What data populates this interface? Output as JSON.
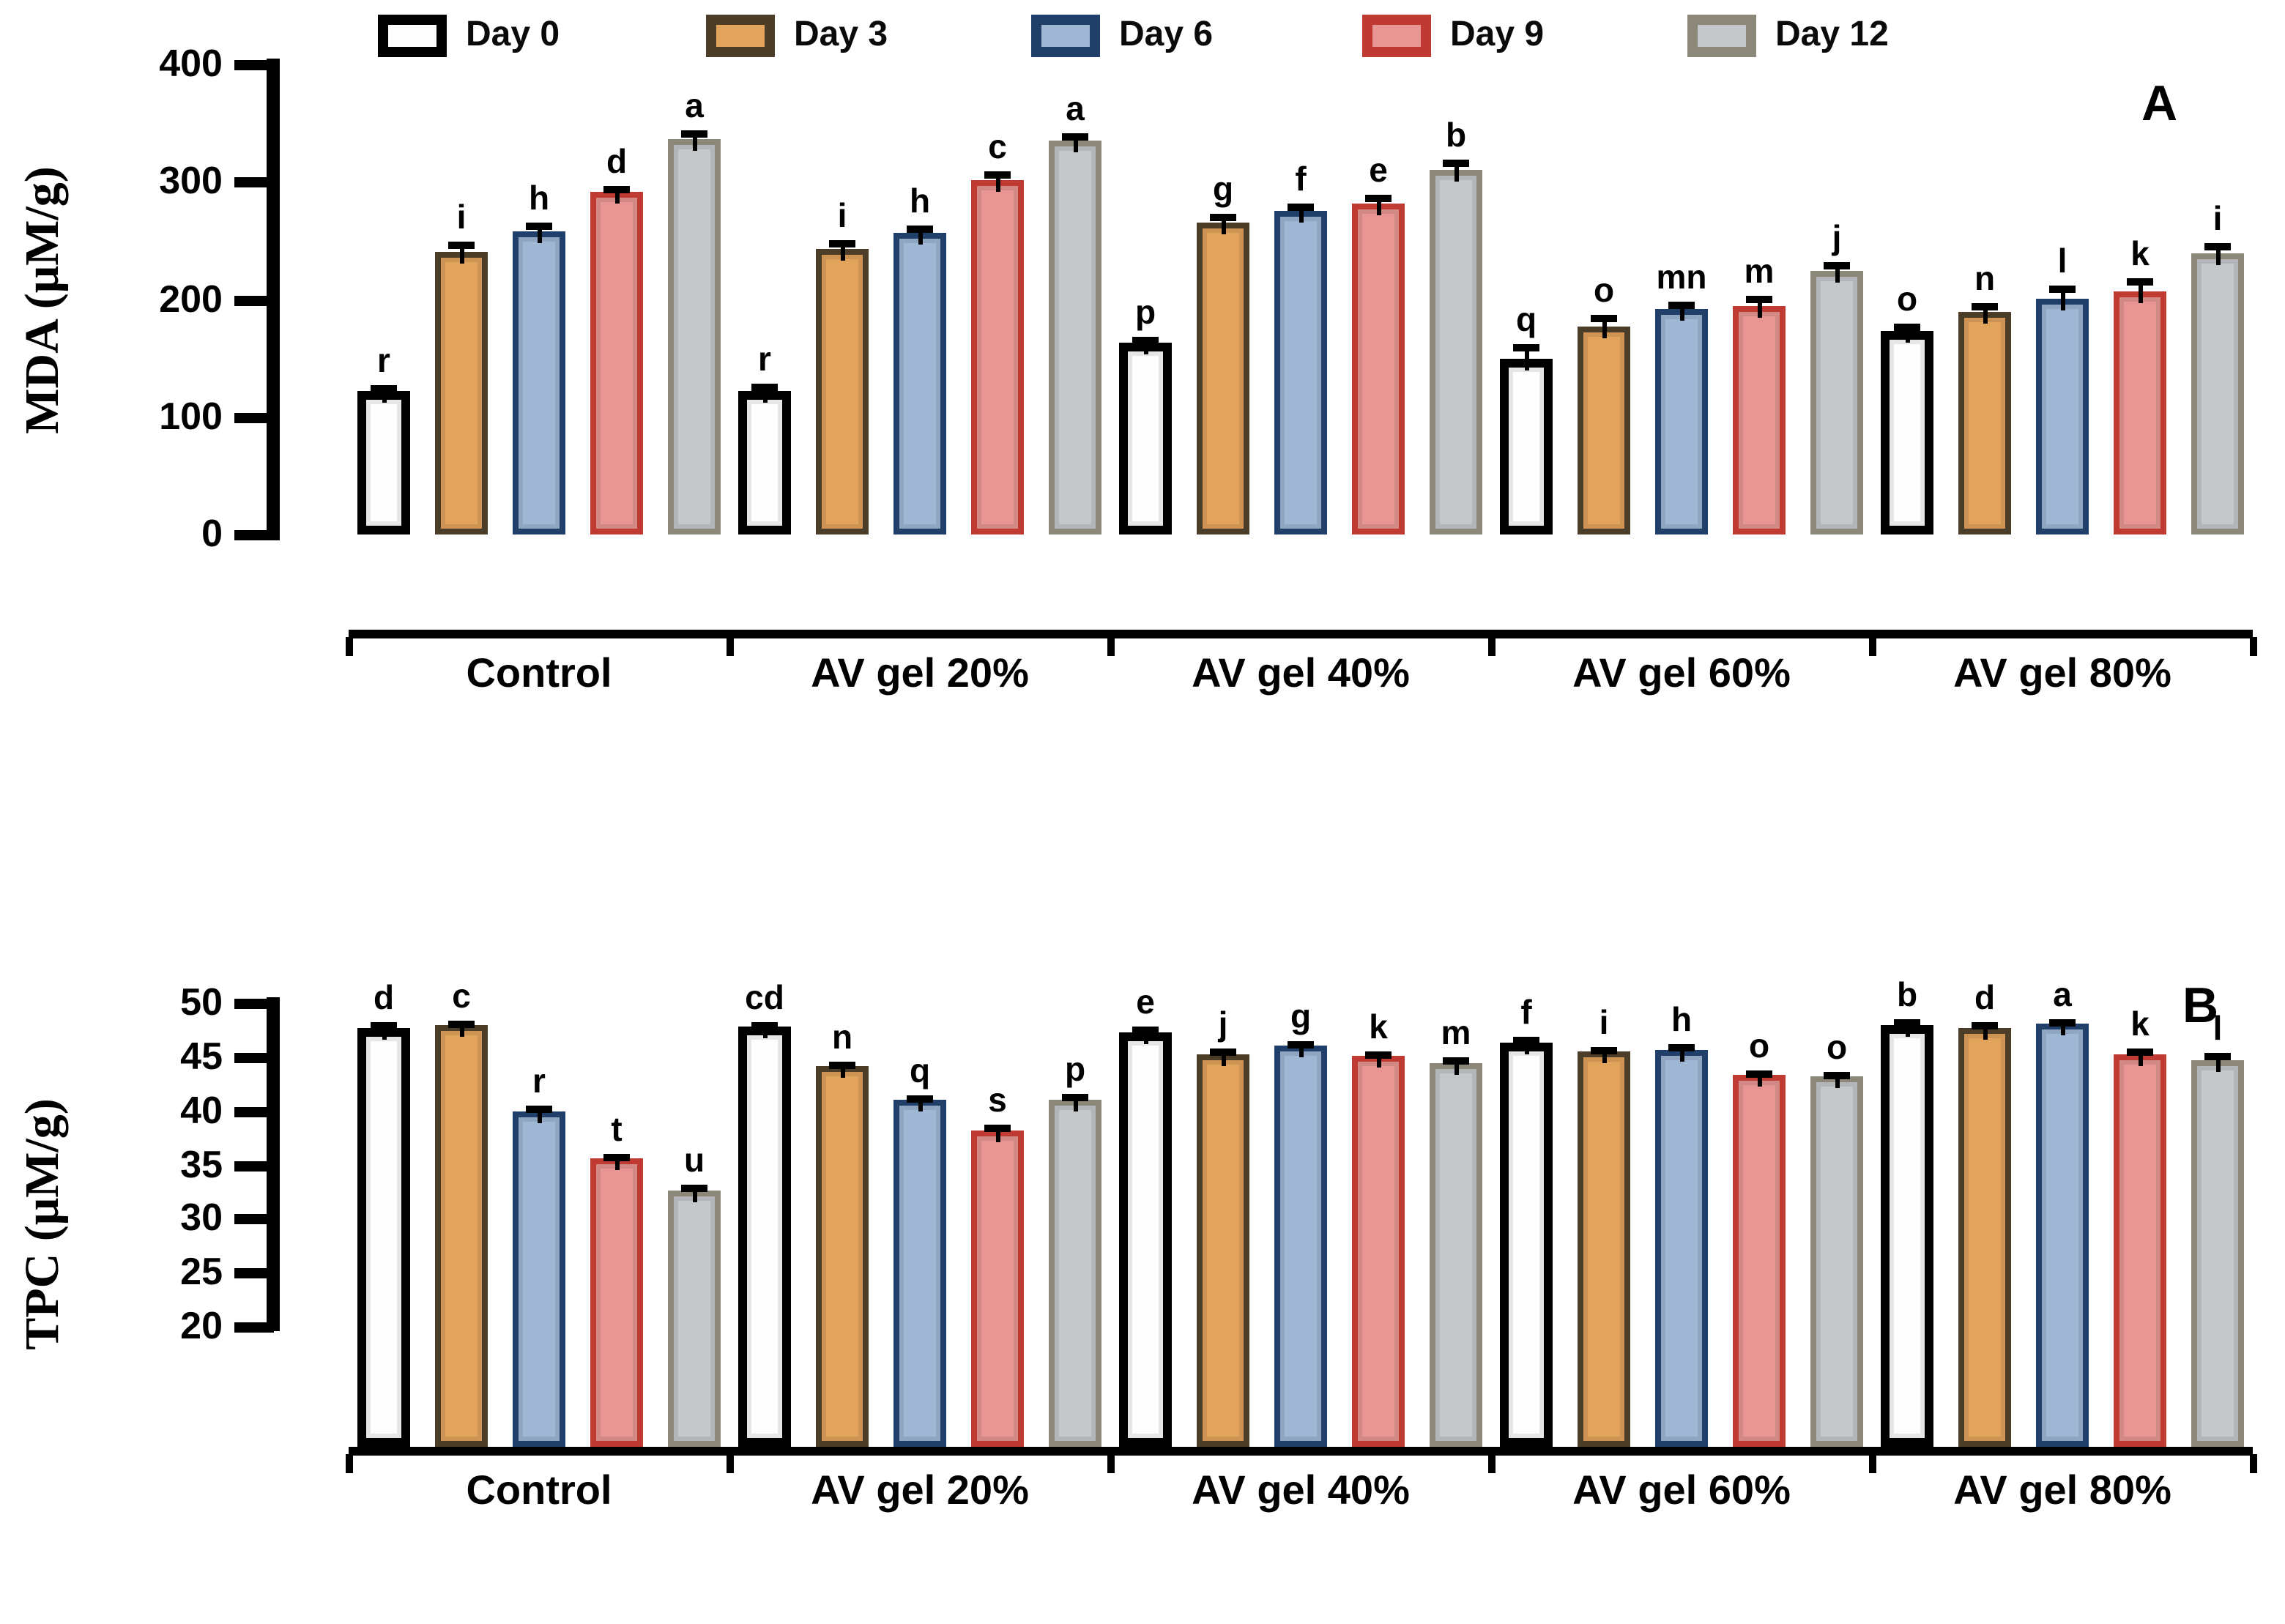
{
  "figure": {
    "panel_a_label": "A",
    "panel_b_label": "B"
  },
  "chart_data": [
    {
      "type": "bar",
      "panel_label": "A",
      "title": "",
      "xlabel": "",
      "ylabel": "MDA (μM/g)",
      "ylim": [
        0,
        400
      ],
      "yticks": [
        0,
        100,
        200,
        300,
        400
      ],
      "grid": false,
      "legend_position": "top",
      "categories": [
        "Control",
        "AV gel 20%",
        "AV gel 40%",
        "AV gel 60%",
        "AV gel 80%"
      ],
      "series": [
        {
          "name": "Day 0",
          "fill": "#FDFDFD",
          "border": "#000000",
          "values": [
            122,
            122,
            163,
            150,
            173
          ],
          "errors": [
            3,
            4,
            3,
            9,
            4
          ],
          "letters": [
            "r",
            "r",
            "p",
            "q",
            "o"
          ]
        },
        {
          "name": "Day 3",
          "fill": "#E2A35C",
          "border": "#4C3D28",
          "values": [
            241,
            243,
            266,
            177,
            189
          ],
          "errors": [
            6,
            5,
            4,
            7,
            5
          ],
          "letters": [
            "i",
            "i",
            "g",
            "o",
            "n"
          ]
        },
        {
          "name": "Day 6",
          "fill": "#9FB6D4",
          "border": "#20406A",
          "values": [
            258,
            257,
            275,
            192,
            201
          ],
          "errors": [
            5,
            4,
            4,
            4,
            8
          ],
          "letters": [
            "h",
            "h",
            "f",
            "mn",
            "l"
          ]
        },
        {
          "name": "Day 9",
          "fill": "#E79693",
          "border": "#BE3A32",
          "values": [
            291,
            302,
            282,
            195,
            207
          ],
          "errors": [
            3,
            4,
            5,
            6,
            8
          ],
          "letters": [
            "d",
            "c",
            "e",
            "m",
            "k"
          ]
        },
        {
          "name": "Day 12",
          "fill": "#C4C8CB",
          "border": "#8B887A",
          "values": [
            336,
            335,
            310,
            224,
            239
          ],
          "errors": [
            6,
            4,
            6,
            5,
            6
          ],
          "letters": [
            "a",
            "a",
            "b",
            "j",
            "i"
          ]
        }
      ]
    },
    {
      "type": "bar",
      "panel_label": "B",
      "title": "",
      "xlabel": "",
      "ylabel": "TPC (μM/g)",
      "ylim": [
        20,
        50
      ],
      "yticks": [
        20,
        25,
        30,
        35,
        40,
        45,
        50
      ],
      "grid": false,
      "legend_position": "none",
      "categories": [
        "Control",
        "AV gel 20%",
        "AV gel 40%",
        "AV gel 60%",
        "AV gel 80%"
      ],
      "series": [
        {
          "name": "Day 0",
          "fill": "#FDFDFD",
          "border": "#000000",
          "values": [
            47.7,
            47.8,
            47.3,
            46.4,
            48.0
          ],
          "errors": [
            0.2,
            0.2,
            0.2,
            0.2,
            0.2
          ],
          "letters": [
            "d",
            "cd",
            "e",
            "f",
            "b"
          ]
        },
        {
          "name": "Day 3",
          "fill": "#E2A35C",
          "border": "#4C3D28",
          "values": [
            47.9,
            44.1,
            45.3,
            45.5,
            47.7
          ],
          "errors": [
            0.2,
            0.2,
            0.2,
            0.2,
            0.2
          ],
          "letters": [
            "c",
            "n",
            "j",
            "i",
            "d"
          ]
        },
        {
          "name": "Day 6",
          "fill": "#9FB6D4",
          "border": "#20406A",
          "values": [
            40.0,
            41.0,
            46.0,
            45.7,
            48.1
          ],
          "errors": [
            0.2,
            0.2,
            0.2,
            0.2,
            0.2
          ],
          "letters": [
            "r",
            "q",
            "g",
            "h",
            "a"
          ]
        },
        {
          "name": "Day 9",
          "fill": "#E79693",
          "border": "#BE3A32",
          "values": [
            35.6,
            38.2,
            45.1,
            43.3,
            45.2
          ],
          "errors": [
            0.2,
            0.3,
            0.2,
            0.2,
            0.3
          ],
          "letters": [
            "t",
            "s",
            "k",
            "o",
            "k"
          ]
        },
        {
          "name": "Day 12",
          "fill": "#C4C8CB",
          "border": "#8B887A",
          "values": [
            32.6,
            41.1,
            44.4,
            43.2,
            44.7
          ],
          "errors": [
            0.3,
            0.2,
            0.3,
            0.2,
            0.4
          ],
          "letters": [
            "u",
            "p",
            "m",
            "o",
            "l"
          ]
        }
      ]
    }
  ]
}
